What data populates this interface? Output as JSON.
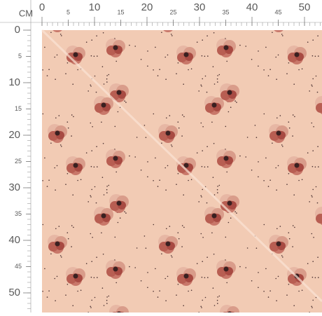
{
  "unit": "CM",
  "top_ruler": {
    "labels": [
      0,
      5,
      10,
      15,
      20,
      25,
      30,
      35,
      40,
      45,
      50
    ]
  },
  "left_ruler": {
    "labels": [
      0,
      5,
      10,
      15,
      20,
      25,
      30,
      35,
      40,
      45,
      50
    ]
  }
}
